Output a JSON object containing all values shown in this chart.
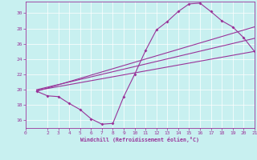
{
  "xlabel": "Windchill (Refroidissement éolien,°C)",
  "bg_color": "#c8f0f0",
  "line_color": "#993399",
  "xlim": [
    0,
    21
  ],
  "ylim": [
    15.0,
    31.5
  ],
  "xticks": [
    0,
    2,
    3,
    4,
    5,
    6,
    7,
    8,
    9,
    10,
    11,
    12,
    13,
    14,
    15,
    16,
    17,
    18,
    19,
    20,
    21
  ],
  "yticks": [
    16,
    18,
    20,
    22,
    24,
    26,
    28,
    30
  ],
  "curve_x": [
    1,
    2,
    3,
    4,
    5,
    6,
    7,
    8,
    9,
    10,
    11,
    12,
    13,
    14,
    15,
    16,
    17,
    18,
    19,
    20,
    21
  ],
  "curve_y": [
    19.8,
    19.2,
    19.1,
    18.2,
    17.4,
    16.2,
    15.5,
    15.6,
    19.1,
    22.0,
    25.1,
    27.8,
    28.9,
    30.2,
    31.2,
    31.3,
    30.2,
    29.0,
    28.2,
    26.8,
    25.0
  ],
  "line1_x": [
    1,
    21
  ],
  "line1_y": [
    19.8,
    28.2
  ],
  "line2_x": [
    1,
    21
  ],
  "line2_y": [
    19.9,
    25.0
  ],
  "line3_x": [
    1,
    21
  ],
  "line3_y": [
    20.0,
    26.7
  ]
}
